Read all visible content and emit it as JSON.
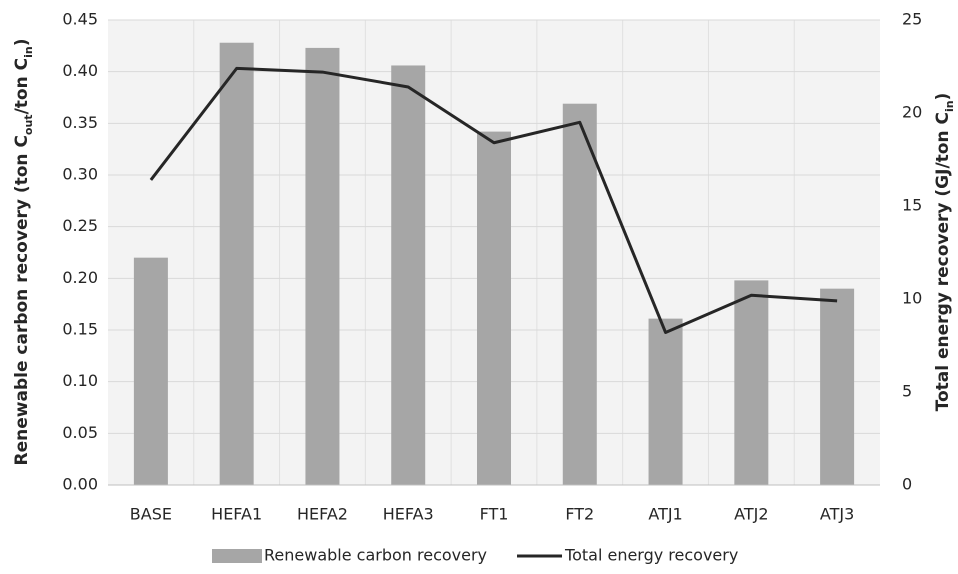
{
  "chart_data": {
    "type": "bar-line",
    "categories": [
      "BASE",
      "HEFA1",
      "HEFA2",
      "HEFA3",
      "FT1",
      "FT2",
      "ATJ1",
      "ATJ2",
      "ATJ3"
    ],
    "series": [
      {
        "name": "Renewable carbon recovery",
        "type": "bar",
        "color": "#a6a6a6",
        "values": [
          0.22,
          0.428,
          0.423,
          0.406,
          0.342,
          0.369,
          0.161,
          0.198,
          0.19
        ]
      },
      {
        "name": "Total energy recovery",
        "type": "line",
        "axis": "y2",
        "color": "#262626",
        "values": [
          16.4,
          22.4,
          22.2,
          21.4,
          18.4,
          19.5,
          8.2,
          10.2,
          9.9
        ]
      }
    ],
    "ylabel": [
      "Renewable carbon recovery (ton C",
      "out",
      "/ton C",
      "in",
      ")"
    ],
    "y2label": [
      "Total energy recovery (GJ/ton C",
      "in",
      ")"
    ],
    "ylim": [
      0,
      0.45
    ],
    "yticks": [
      {
        "value": 0,
        "label": "0.00"
      },
      0.05,
      {
        "value": 0.1,
        "label": "0.10"
      },
      0.15,
      {
        "value": 0.2,
        "label": "0.20"
      },
      0.25,
      {
        "value": 0.3,
        "label": "0.30"
      },
      0.35,
      {
        "value": 0.4,
        "label": "0.40"
      },
      0.45
    ],
    "y2lim": [
      0,
      25
    ],
    "y2ticks": [
      0,
      5,
      10,
      15,
      20,
      25
    ],
    "grid": true,
    "legend": "bottom"
  }
}
